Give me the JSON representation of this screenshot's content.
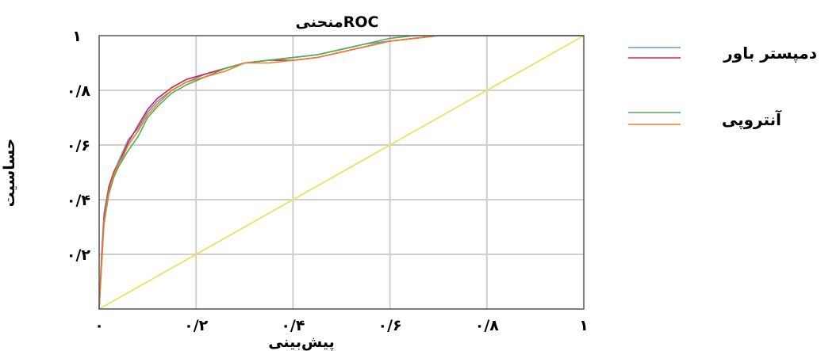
{
  "chart_data": {
    "type": "line",
    "title": "منحنیROC",
    "xlabel": "پیش‌بینی",
    "ylabel": "حساسیت",
    "xlim": [
      0,
      1
    ],
    "ylim": [
      0,
      1
    ],
    "grid": true,
    "x_ticks": [
      {
        "value": 0,
        "label": "۰"
      },
      {
        "value": 0.2,
        "label": "۰/۲"
      },
      {
        "value": 0.4,
        "label": "۰/۴"
      },
      {
        "value": 0.6,
        "label": "۰/۶"
      },
      {
        "value": 0.8,
        "label": "۰/۸"
      },
      {
        "value": 1,
        "label": "۱"
      }
    ],
    "y_ticks": [
      {
        "value": 0.2,
        "label": "۰/۲"
      },
      {
        "value": 0.4,
        "label": "۰/۴"
      },
      {
        "value": 0.6,
        "label": "۰/۶"
      },
      {
        "value": 0.8,
        "label": "۰/۸"
      },
      {
        "value": 1,
        "label": "۱"
      }
    ],
    "legend_position": "right",
    "legend_groups": [
      {
        "label": "دمپستر باور",
        "series_indices": [
          0,
          1
        ]
      },
      {
        "label": "آنتروپی",
        "series_indices": [
          2,
          3
        ]
      }
    ],
    "series": [
      {
        "color": "#5b9bd5",
        "x": [
          0,
          0.005,
          0.01,
          0.02,
          0.03,
          0.04,
          0.05,
          0.06,
          0.08,
          0.1,
          0.12,
          0.15,
          0.18,
          0.22,
          0.26,
          0.3,
          0.35,
          0.4,
          0.45,
          0.5,
          0.55,
          0.6,
          0.65,
          0.7,
          0.8,
          0.9,
          1
        ],
        "y": [
          0,
          0.2,
          0.35,
          0.45,
          0.5,
          0.54,
          0.58,
          0.62,
          0.66,
          0.72,
          0.76,
          0.8,
          0.83,
          0.86,
          0.88,
          0.9,
          0.91,
          0.92,
          0.93,
          0.95,
          0.97,
          0.98,
          0.99,
          1,
          1,
          1,
          1
        ]
      },
      {
        "color": "#d6234a",
        "x": [
          0,
          0.005,
          0.01,
          0.02,
          0.03,
          0.04,
          0.05,
          0.06,
          0.08,
          0.1,
          0.12,
          0.15,
          0.18,
          0.22,
          0.26,
          0.3,
          0.35,
          0.4,
          0.45,
          0.5,
          0.55,
          0.6,
          0.65,
          0.7,
          0.8,
          0.9,
          1
        ],
        "y": [
          0,
          0.18,
          0.33,
          0.44,
          0.5,
          0.53,
          0.57,
          0.61,
          0.67,
          0.73,
          0.77,
          0.81,
          0.84,
          0.86,
          0.88,
          0.9,
          0.91,
          0.91,
          0.92,
          0.94,
          0.96,
          0.98,
          0.99,
          1,
          1,
          1,
          1
        ]
      },
      {
        "color": "#4caf50",
        "x": [
          0,
          0.005,
          0.01,
          0.02,
          0.03,
          0.04,
          0.05,
          0.06,
          0.08,
          0.1,
          0.12,
          0.15,
          0.18,
          0.22,
          0.26,
          0.3,
          0.35,
          0.4,
          0.45,
          0.5,
          0.55,
          0.6,
          0.65,
          0.7,
          0.8,
          0.9,
          1
        ],
        "y": [
          0,
          0.16,
          0.31,
          0.42,
          0.48,
          0.52,
          0.55,
          0.58,
          0.63,
          0.7,
          0.74,
          0.79,
          0.82,
          0.85,
          0.88,
          0.9,
          0.91,
          0.92,
          0.93,
          0.95,
          0.97,
          0.99,
          1,
          1,
          1,
          1,
          1
        ]
      },
      {
        "color": "#ed7d31",
        "x": [
          0,
          0.005,
          0.01,
          0.02,
          0.03,
          0.04,
          0.05,
          0.06,
          0.08,
          0.1,
          0.12,
          0.15,
          0.18,
          0.22,
          0.26,
          0.3,
          0.35,
          0.4,
          0.45,
          0.5,
          0.55,
          0.6,
          0.65,
          0.7,
          0.8,
          0.9,
          1
        ],
        "y": [
          0,
          0.17,
          0.32,
          0.43,
          0.49,
          0.53,
          0.56,
          0.6,
          0.65,
          0.71,
          0.75,
          0.8,
          0.83,
          0.85,
          0.87,
          0.9,
          0.9,
          0.91,
          0.92,
          0.94,
          0.96,
          0.98,
          0.99,
          1,
          1,
          1,
          1
        ]
      },
      {
        "color": "#f0e060",
        "x": [
          0,
          1
        ],
        "y": [
          0,
          1
        ]
      }
    ],
    "colors": {
      "grid": "#cfcfcf",
      "axis": "#555555"
    }
  }
}
